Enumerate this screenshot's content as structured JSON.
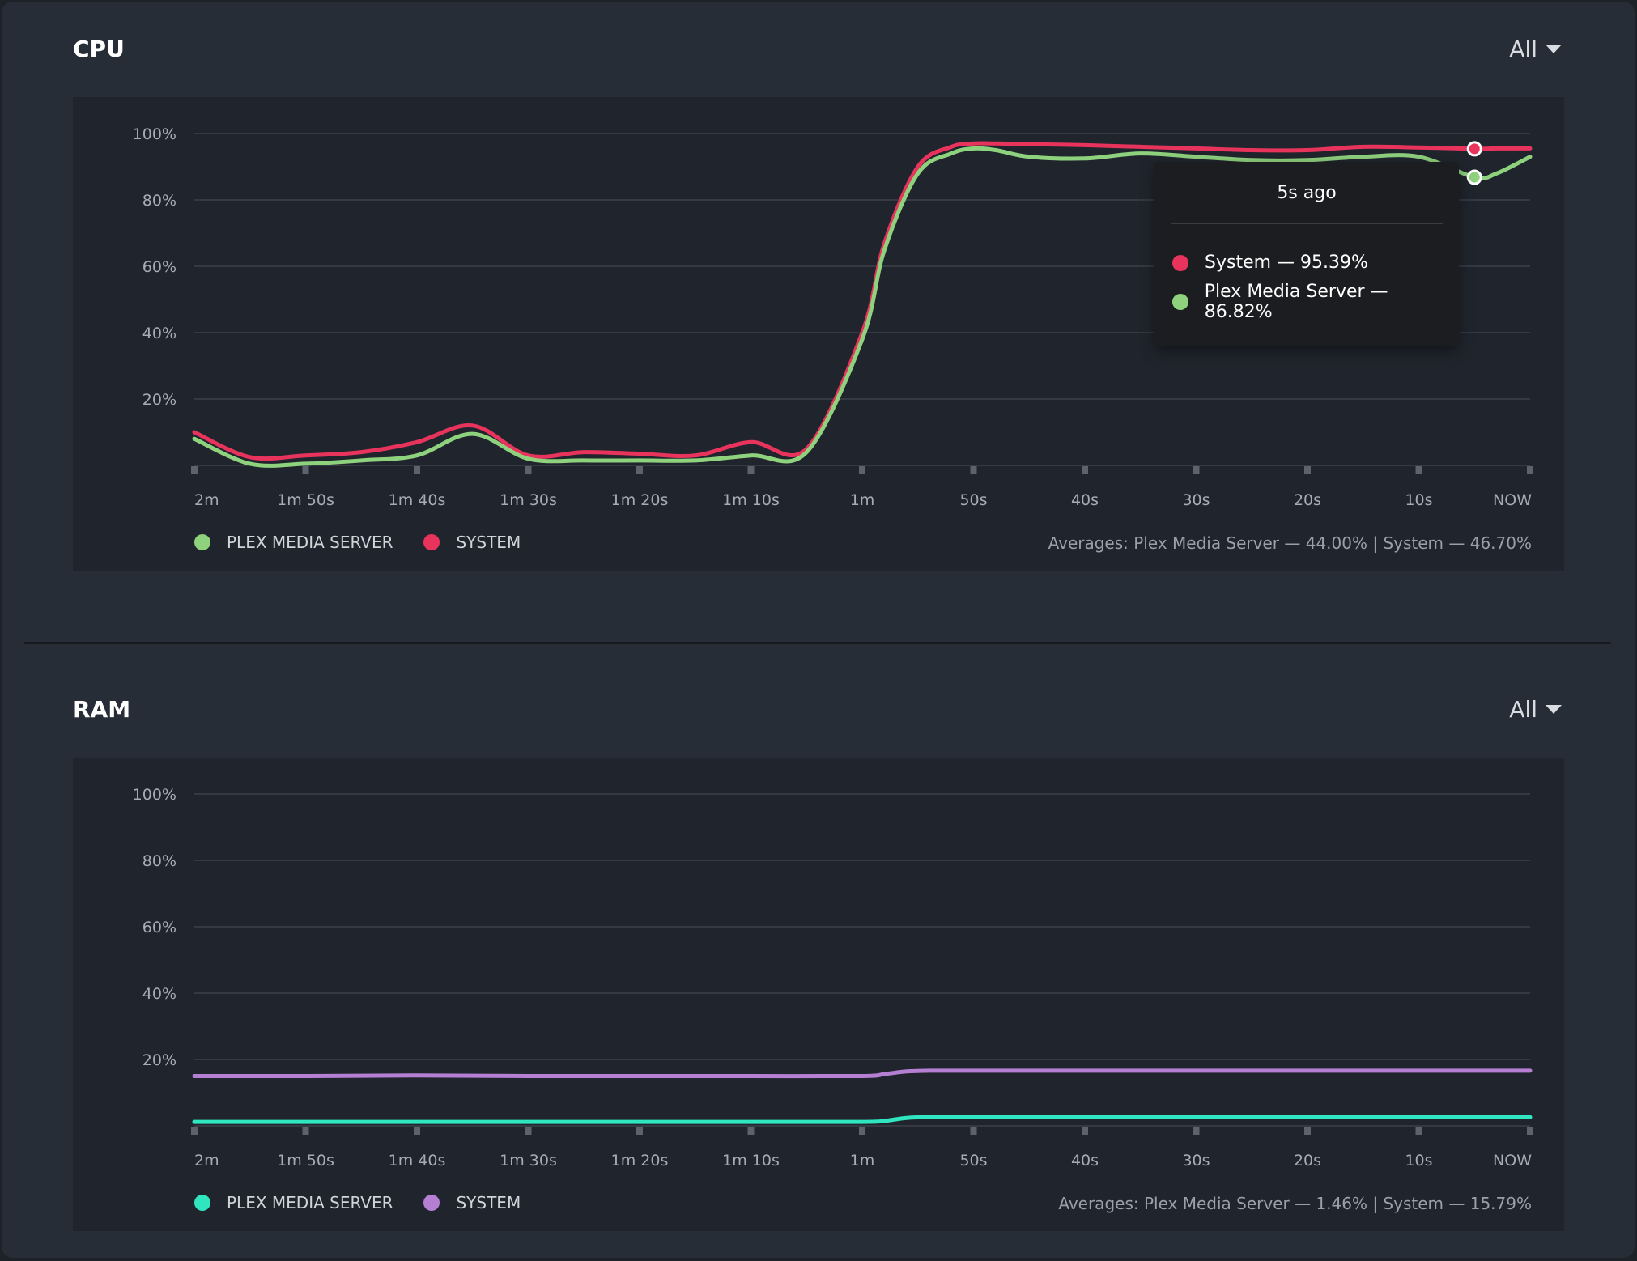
{
  "colors": {
    "plex_cpu": "#8fd27e",
    "system_cpu": "#e8345c",
    "plex_ram": "#2fe6c1",
    "system_ram": "#b57fd4"
  },
  "cpu": {
    "title": "CPU",
    "range_label": "All",
    "legend": [
      {
        "label": "PLEX MEDIA SERVER",
        "color": "#8fd27e"
      },
      {
        "label": "SYSTEM",
        "color": "#e8345c"
      }
    ],
    "averages": "Averages: Plex Media Server — 44.00% | System — 46.70%",
    "tooltip": {
      "title": "5s ago",
      "rows": [
        {
          "text": "System — 95.39%",
          "color": "#e8345c"
        },
        {
          "text": "Plex Media Server — 86.82%",
          "color": "#8fd27e"
        }
      ]
    }
  },
  "ram": {
    "title": "RAM",
    "range_label": "All",
    "legend": [
      {
        "label": "PLEX MEDIA SERVER",
        "color": "#2fe6c1"
      },
      {
        "label": "SYSTEM",
        "color": "#b57fd4"
      }
    ],
    "averages": "Averages: Plex Media Server — 1.46% | System — 15.79%"
  },
  "chart_data": [
    {
      "type": "line",
      "title": "CPU",
      "x": [
        120,
        115,
        110,
        105,
        100,
        95,
        90,
        85,
        80,
        75,
        70,
        65,
        60,
        58,
        55,
        52,
        50,
        48,
        45,
        40,
        35,
        30,
        25,
        20,
        15,
        10,
        5,
        3,
        0
      ],
      "x_tick_labels": [
        "2m",
        "1m 50s",
        "1m 40s",
        "1m 30s",
        "1m 20s",
        "1m 10s",
        "1m",
        "50s",
        "40s",
        "30s",
        "20s",
        "10s",
        "NOW"
      ],
      "yticks": [
        "100%",
        "80%",
        "60%",
        "40%",
        "20%"
      ],
      "ylim": [
        0,
        100
      ],
      "grid": true,
      "legend_position": "bottom-left",
      "series": [
        {
          "name": "Plex Media Server",
          "color": "#8fd27e",
          "values": [
            8,
            0.5,
            0.5,
            1.5,
            3,
            9.5,
            2,
            1.5,
            1.5,
            1.5,
            3,
            4,
            38,
            65,
            88,
            94,
            95.5,
            95,
            93,
            92.5,
            94,
            93,
            92,
            92,
            93,
            93,
            86.82,
            88,
            93
          ]
        },
        {
          "name": "System",
          "color": "#e8345c",
          "values": [
            10,
            2.5,
            3,
            4,
            7,
            12,
            3,
            4,
            3.5,
            3,
            7,
            5,
            40,
            67,
            90,
            96,
            97,
            97,
            96.8,
            96.5,
            96,
            95.5,
            95,
            95,
            96,
            95.8,
            95.39,
            95.5,
            95.5
          ]
        }
      ],
      "highlight": {
        "x": 5,
        "label": "5s ago"
      }
    },
    {
      "type": "line",
      "title": "RAM",
      "x": [
        120,
        110,
        100,
        90,
        80,
        70,
        60,
        58,
        56,
        54,
        50,
        40,
        30,
        20,
        10,
        0
      ],
      "x_tick_labels": [
        "2m",
        "1m 50s",
        "1m 40s",
        "1m 30s",
        "1m 20s",
        "1m 10s",
        "1m",
        "50s",
        "40s",
        "30s",
        "20s",
        "10s",
        "NOW"
      ],
      "yticks": [
        "100%",
        "80%",
        "60%",
        "40%",
        "20%"
      ],
      "ylim": [
        0,
        100
      ],
      "grid": true,
      "legend_position": "bottom-left",
      "series": [
        {
          "name": "Plex Media Server",
          "color": "#2fe6c1",
          "values": [
            1.2,
            1.2,
            1.2,
            1.2,
            1.2,
            1.2,
            1.2,
            1.5,
            2.4,
            2.6,
            2.6,
            2.6,
            2.6,
            2.6,
            2.6,
            2.6
          ]
        },
        {
          "name": "System",
          "color": "#b57fd4",
          "values": [
            15,
            15,
            15.2,
            15,
            15,
            15,
            15,
            15.6,
            16.4,
            16.6,
            16.6,
            16.6,
            16.6,
            16.6,
            16.6,
            16.6
          ]
        }
      ]
    }
  ]
}
